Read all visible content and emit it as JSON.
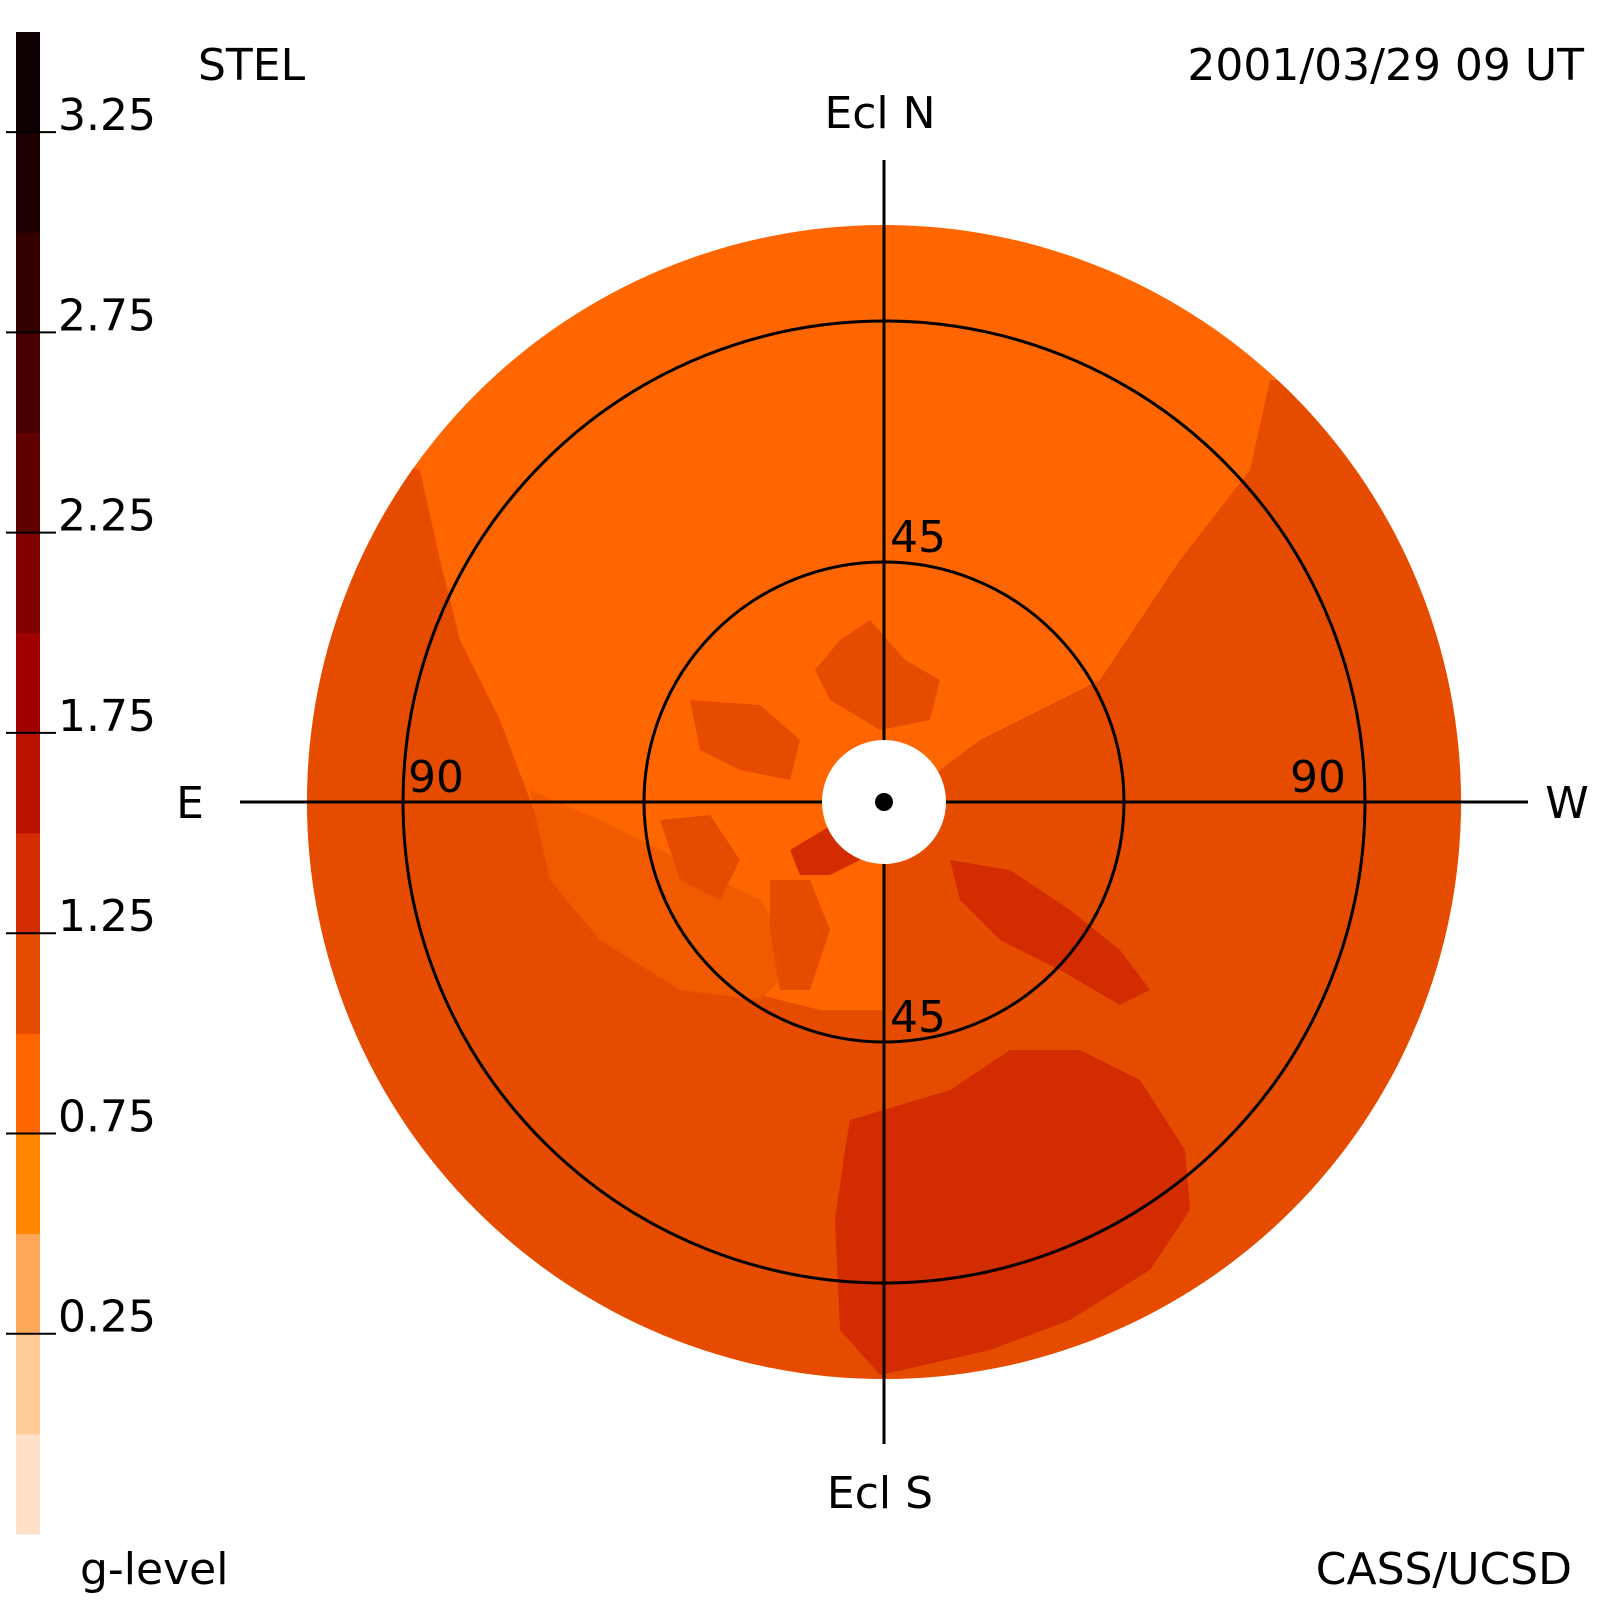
{
  "header": {
    "instrument": "STEL",
    "timestamp": "2001/03/29 09 UT",
    "credit": "CASS/UCSD"
  },
  "colorbar": {
    "label": "g-level",
    "tick_labels": [
      "0.25",
      "0.75",
      "1.25",
      "1.75",
      "2.25",
      "2.75",
      "3.25"
    ],
    "tick_values": [
      0.25,
      0.75,
      1.25,
      1.75,
      2.25,
      2.75,
      3.25
    ],
    "range": [
      -0.25,
      3.5
    ],
    "band_colors": [
      "#ffe0c8",
      "#ffcc99",
      "#ffa857",
      "#ff8800",
      "#ff6600",
      "#e64c00",
      "#d32c00",
      "#bb1200",
      "#a00000",
      "#800000",
      "#600000",
      "#4a0000",
      "#330000",
      "#1e0000",
      "#0e0000"
    ]
  },
  "chart_data": {
    "type": "heatmap",
    "title": "",
    "projection": "polar sky map centred on the Sun, ecliptic oriented",
    "direction_labels": {
      "north": "Ecl N",
      "south": "Ecl S",
      "east": "E",
      "west": "W"
    },
    "elongation_rings_deg": [
      45,
      90
    ],
    "ring_label_45": "45",
    "ring_label_90": "90",
    "max_elongation_deg": 120,
    "background_g_level": 0.75,
    "regions": [
      {
        "name": "north-background",
        "g_level": 0.75,
        "color": "#ff6600"
      },
      {
        "name": "western-band",
        "g_level": 1.0,
        "color": "#e64c00"
      },
      {
        "name": "southern-disk",
        "g_level": 1.0,
        "color": "#e64c00"
      },
      {
        "name": "eastern-rim",
        "g_level": 1.0,
        "color": "#e64c00"
      },
      {
        "name": "inner-eastern-lobe",
        "g_level": 0.85,
        "color": "#f25a00"
      },
      {
        "name": "inner-lobes",
        "g_level": 1.0,
        "color": "#e64c00"
      },
      {
        "name": "inner-sw-patch",
        "g_level": 1.25,
        "color": "#d32c00"
      },
      {
        "name": "south-enhancement",
        "g_level": 1.25,
        "color": "#d32c00"
      },
      {
        "name": "southwest-streak",
        "g_level": 1.25,
        "color": "#d32c00"
      }
    ]
  }
}
